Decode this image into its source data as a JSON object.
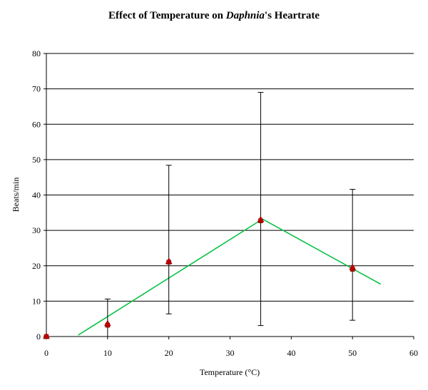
{
  "chart_data": {
    "type": "scatter",
    "title_parts": [
      "Effect of Temperature on ",
      "Daphnia",
      "'s Heartrate"
    ],
    "xlabel": "Temperature (°C)",
    "ylabel": "Beats/min",
    "xlim": [
      0,
      60
    ],
    "ylim": [
      0,
      80
    ],
    "xticks": [
      0,
      10,
      20,
      30,
      40,
      50,
      60
    ],
    "yticks": [
      0,
      10,
      20,
      30,
      40,
      50,
      60,
      70,
      80
    ],
    "grid": "horizontal",
    "series": [
      {
        "marker": "square",
        "color": "#c00000",
        "x": [
          0,
          10,
          20,
          35,
          50
        ],
        "y": [
          0,
          3.2,
          21,
          32.7,
          19
        ]
      },
      {
        "marker": "triangle",
        "color": "#c00000",
        "x": [
          0,
          10,
          20,
          35,
          50
        ],
        "y": [
          0,
          3.6,
          21.2,
          33,
          19.5
        ]
      }
    ],
    "error_bars": [
      {
        "x": 10,
        "low": 0,
        "high": 10.6
      },
      {
        "x": 20,
        "low": 6.4,
        "high": 48.4
      },
      {
        "x": 35,
        "low": 3.1,
        "high": 69
      },
      {
        "x": 50,
        "low": 4.6,
        "high": 41.6
      }
    ],
    "trendlines": [
      {
        "color": "#00c040",
        "x": [
          5.2,
          35.3
        ],
        "y": [
          0.4,
          33.2
        ]
      },
      {
        "color": "#00c040",
        "x": [
          35.3,
          54.6
        ],
        "y": [
          33.2,
          14.8
        ]
      }
    ]
  }
}
